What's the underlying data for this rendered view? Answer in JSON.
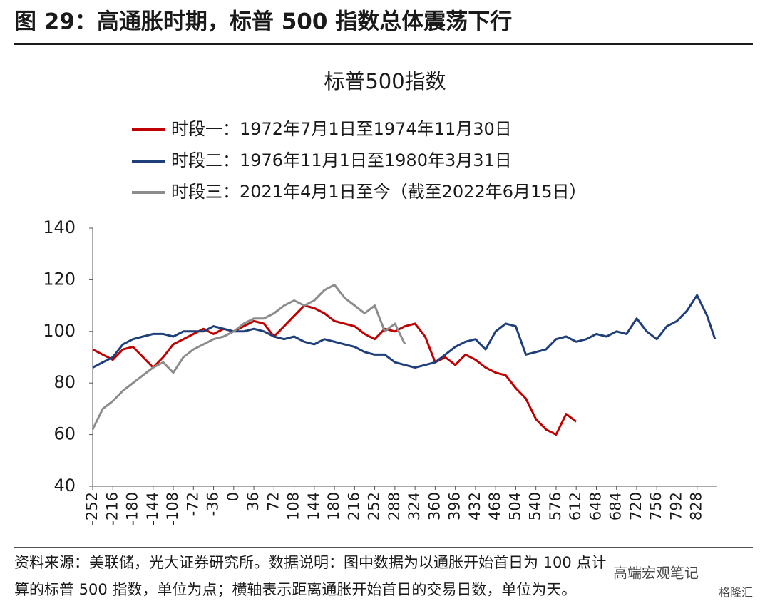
{
  "header": {
    "title": "图 29：高通胀时期，标普 500 指数总体震荡下行"
  },
  "chart_data": {
    "type": "line",
    "title": "标普500指数",
    "xlim": [
      -252,
      864
    ],
    "xticks": [
      -252,
      -216,
      -180,
      -144,
      -108,
      -72,
      -36,
      0,
      36,
      72,
      108,
      144,
      180,
      216,
      252,
      288,
      324,
      360,
      396,
      432,
      468,
      504,
      540,
      576,
      612,
      648,
      684,
      720,
      756,
      792,
      828
    ],
    "ylim": [
      40,
      140
    ],
    "yticks": [
      40,
      60,
      80,
      100,
      120,
      140
    ],
    "legend": "upper left",
    "series": [
      {
        "name": "时段一：1972年7月1日至1974年11月30日",
        "color": "#c00000",
        "x": [
          -252,
          -234,
          -216,
          -198,
          -180,
          -162,
          -144,
          -126,
          -108,
          -90,
          -72,
          -54,
          -36,
          -18,
          0,
          18,
          36,
          54,
          72,
          90,
          108,
          126,
          144,
          162,
          180,
          198,
          216,
          234,
          252,
          270,
          288,
          306,
          324,
          342,
          360,
          378,
          396,
          414,
          432,
          450,
          468,
          486,
          504,
          522,
          540,
          558,
          576,
          594,
          612
        ],
        "values": [
          93,
          91,
          89,
          93,
          94,
          90,
          86,
          90,
          95,
          97,
          99,
          101,
          99,
          101,
          100,
          102,
          104,
          103,
          98,
          102,
          106,
          110,
          109,
          107,
          104,
          103,
          102,
          99,
          97,
          101,
          100,
          102,
          103,
          98,
          88,
          90,
          87,
          91,
          89,
          86,
          84,
          83,
          78,
          74,
          66,
          62,
          60,
          68,
          65
        ]
      },
      {
        "name": "时段二：1976年11月1日至1980年3月31日",
        "color": "#1f3f7a",
        "x": [
          -252,
          -234,
          -216,
          -198,
          -180,
          -162,
          -144,
          -126,
          -108,
          -90,
          -72,
          -54,
          -36,
          -18,
          0,
          18,
          36,
          54,
          72,
          90,
          108,
          126,
          144,
          162,
          180,
          198,
          216,
          234,
          252,
          270,
          288,
          306,
          324,
          342,
          360,
          378,
          396,
          414,
          432,
          450,
          468,
          486,
          504,
          522,
          540,
          558,
          576,
          594,
          612,
          630,
          648,
          666,
          684,
          702,
          720,
          738,
          756,
          774,
          792,
          810,
          828,
          846,
          860
        ],
        "values": [
          86,
          88,
          90,
          95,
          97,
          98,
          99,
          99,
          98,
          100,
          100,
          100,
          102,
          101,
          100,
          100,
          101,
          100,
          98,
          97,
          98,
          96,
          95,
          97,
          96,
          95,
          94,
          92,
          91,
          91,
          88,
          87,
          86,
          87,
          88,
          91,
          94,
          96,
          97,
          93,
          100,
          103,
          102,
          91,
          92,
          93,
          97,
          98,
          96,
          97,
          99,
          98,
          100,
          99,
          105,
          100,
          97,
          102,
          104,
          108,
          114,
          106,
          97
        ]
      },
      {
        "name": "时段三：2021年4月1日至今（截至2022年6月15日）",
        "color": "#8c8c8c",
        "x": [
          -252,
          -234,
          -216,
          -198,
          -180,
          -162,
          -144,
          -126,
          -108,
          -90,
          -72,
          -54,
          -36,
          -18,
          0,
          18,
          36,
          54,
          72,
          90,
          108,
          126,
          144,
          162,
          180,
          198,
          216,
          234,
          252,
          270,
          288,
          306
        ],
        "values": [
          62,
          70,
          73,
          77,
          80,
          83,
          86,
          88,
          84,
          90,
          93,
          95,
          97,
          98,
          100,
          103,
          105,
          105,
          107,
          110,
          112,
          110,
          112,
          116,
          118,
          113,
          110,
          107,
          110,
          100,
          103,
          95
        ]
      }
    ]
  },
  "footer": {
    "lines": [
      "资料来源：美联储，光大证券研究所。数据说明：图中数据为以通胀开始首日为 100 点计",
      "算的标普 500 指数，单位为点；横轴表示距离通胀开始首日的交易日数，单位为天。"
    ]
  },
  "watermark": [
    "高端宏观笔记",
    "格隆汇"
  ]
}
